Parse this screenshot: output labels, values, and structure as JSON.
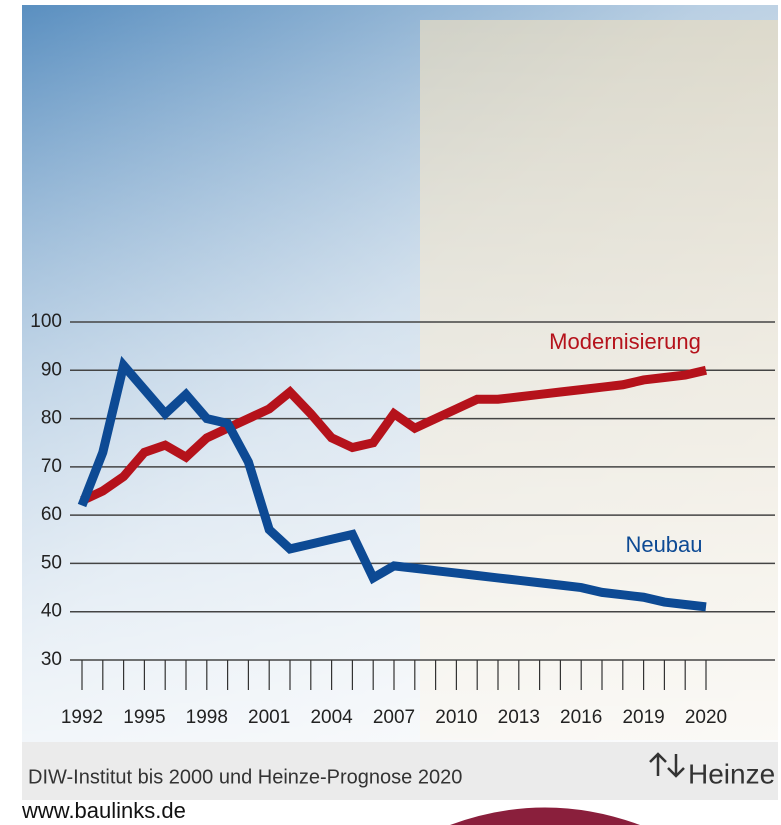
{
  "chart_data": {
    "type": "line",
    "categories": [
      "1992",
      null,
      null,
      "1995",
      null,
      null,
      "1998",
      null,
      null,
      "2001",
      null,
      null,
      "2004",
      null,
      null,
      "2007",
      null,
      null,
      "2010",
      null,
      null,
      "2013",
      null,
      null,
      "2016",
      null,
      null,
      "2019",
      null,
      null,
      "2020"
    ],
    "series": [
      {
        "name": "Modernisierung",
        "color": "#b5121b",
        "values": [
          63,
          65,
          68,
          73,
          74.5,
          72,
          76,
          78,
          80,
          82,
          85.5,
          81,
          76,
          74,
          75,
          81,
          78,
          80,
          82,
          84,
          84,
          84.5,
          85,
          85.5,
          86,
          86.5,
          87,
          88,
          88.5,
          89,
          90
        ]
      },
      {
        "name": "Neubau",
        "color": "#0d4a94",
        "values": [
          62,
          73,
          91,
          86,
          81,
          85,
          80,
          79,
          71,
          57,
          53,
          54,
          55,
          56,
          47,
          49.5,
          49,
          48.5,
          48,
          47.5,
          47,
          46.5,
          46,
          45.5,
          45,
          44,
          43.5,
          43,
          42,
          41.5,
          41
        ]
      }
    ],
    "ylim": [
      30,
      100
    ],
    "yticks": [
      30,
      40,
      50,
      60,
      70,
      80,
      90,
      100
    ],
    "grid": true,
    "source": "DIW-Institut bis 2000 und Heinze-Prognose 2020",
    "brand": "Heinze"
  },
  "footer": "www.baulinks.de"
}
